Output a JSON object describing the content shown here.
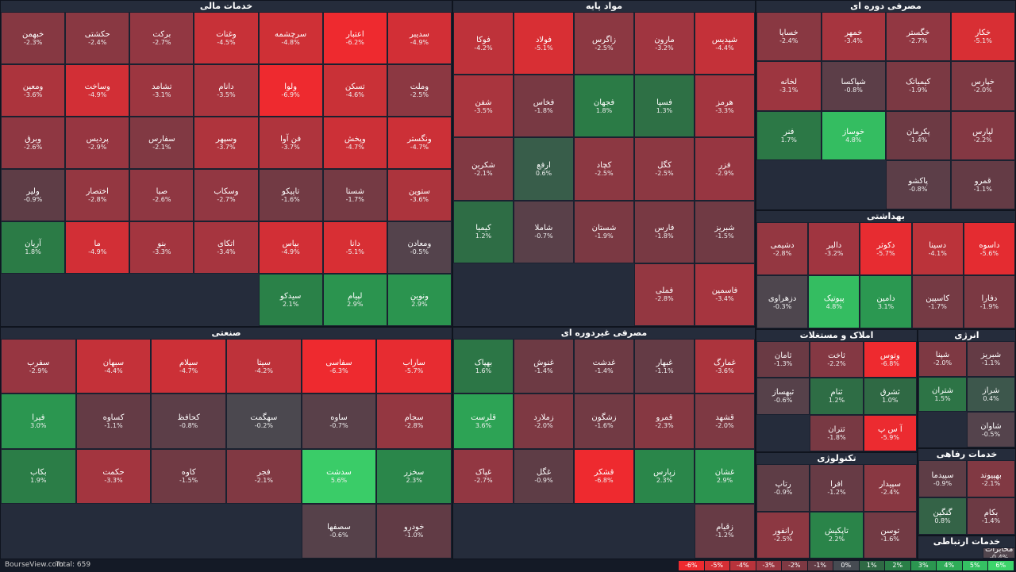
{
  "chart_data": {
    "type": "treemap",
    "sectors": [
      {
        "title": "خدمات مالی",
        "names": [
          "سدیبر",
          "اعتبار",
          "سرچشمه",
          "وغنات",
          "برکت",
          "حکشتی",
          "خبهمن",
          "وملت",
          "تسکن",
          "ولوا",
          "دانام",
          "تشامد",
          "وساخت",
          "ومعین",
          "ونگستر",
          "وپخش",
          "فن آوا",
          "وسپهر",
          "سفارس",
          "پردیس",
          "وبرق",
          "ستوین",
          "شستا",
          "تاپیکو",
          "وسکاب",
          "صبا",
          "اختصار",
          "ولیر",
          "ومعادن",
          "دانا",
          "بپاس",
          "اتکای",
          "بنو",
          "ما",
          "آریان",
          "ونوین",
          "لپیام",
          "سیدکو"
        ],
        "values": [
          -4.9,
          -6.2,
          -4.8,
          -4.5,
          -2.7,
          -2.4,
          -2.3,
          -2.5,
          -4.6,
          -6.9,
          -3.5,
          -3.1,
          -4.9,
          -3.6,
          -4.7,
          -4.7,
          -3.7,
          -3.7,
          -2.1,
          -2.9,
          -2.6,
          -3.6,
          -1.7,
          -1.6,
          -2.7,
          -2.6,
          -2.8,
          -0.9,
          -0.5,
          -5.1,
          -4.9,
          -3.4,
          -3.3,
          -4.9,
          1.8,
          2.9,
          2.9,
          2.1
        ],
        "value_labels": [
          "-4.9%",
          "-6.2%",
          "-4.8%",
          "-4.5%",
          "-2.7%",
          "-2.4%",
          "-2.3%",
          "-2.5%",
          "-4.6%",
          "-6.9%",
          "-3.5%",
          "-3.1%",
          "-4.9%",
          "-3.6%",
          "-4.7%",
          "-4.7%",
          "-3.7%",
          "-3.7%",
          "-2.1%",
          "-2.9%",
          "-2.6%",
          "-3.6%",
          "-1.7%",
          "-1.6%",
          "-2.7%",
          "-2.6%",
          "-2.8%",
          "-0.9%",
          "-0.5%",
          "-5.1%",
          "-4.9%",
          "-3.4%",
          "-3.3%",
          "-4.9%",
          "1.8%",
          "2.9%",
          "2.9%",
          "2.1%"
        ]
      },
      {
        "title": "مواد پایه",
        "names": [
          "شپدیس",
          "مارون",
          "زاگرس",
          "فولاد",
          "فوکا",
          "هرمز",
          "فسپا",
          "فجهان",
          "فخاس",
          "شفن",
          "فزر",
          "کگل",
          "کچاد",
          "ارفع",
          "شکربن",
          "شبریز",
          "فارس",
          "شستان",
          "شاملا",
          "کیمیا",
          "فاسمین",
          "فملی"
        ],
        "values": [
          -4.4,
          -3.2,
          -2.5,
          -5.1,
          -4.2,
          -3.3,
          1.3,
          1.8,
          -1.8,
          -3.5,
          -2.9,
          -2.5,
          -2.5,
          0.6,
          -2.1,
          -1.5,
          -1.8,
          -1.9,
          -0.7,
          1.2,
          -3.4,
          -2.8
        ],
        "value_labels": [
          "-4.4%",
          "-3.2%",
          "-2.5%",
          "-5.1%",
          "-4.2%",
          "-3.3%",
          "1.3%",
          "1.8%",
          "-1.8%",
          "-3.5%",
          "-2.9%",
          "-2.5%",
          "-2.5%",
          "0.6%",
          "-2.1%",
          "-1.5%",
          "-1.8%",
          "-1.9%",
          "-0.7%",
          "1.2%",
          "-3.4%",
          "-2.8%"
        ]
      },
      {
        "title": "مصرفی دوره ای",
        "names": [
          "خکار",
          "خگستر",
          "خمهر",
          "خساپا",
          "خپارس",
          "کیمیاتک",
          "شپاکسا",
          "لخانه",
          "لپارس",
          "پکرمان",
          "خوساز",
          "فنر",
          "قمرو",
          "پاکشو"
        ],
        "values": [
          -5.1,
          -2.7,
          -3.4,
          -2.4,
          -2.0,
          -1.9,
          -0.8,
          -3.1,
          -2.2,
          -1.4,
          4.8,
          1.7,
          -1.1,
          -0.8
        ],
        "value_labels": [
          "-5.1%",
          "-2.7%",
          "-3.4%",
          "-2.4%",
          "-2.0%",
          "-1.9%",
          "-0.8%",
          "-3.1%",
          "-2.2%",
          "-1.4%",
          "4.8%",
          "1.7%",
          "-1.1%",
          "-0.8%"
        ]
      },
      {
        "title": "بهداشتی",
        "names": [
          "داسوه",
          "دسینا",
          "دکوثر",
          "دالبر",
          "دشیمی",
          "دفارا",
          "کاسپین",
          "دامین",
          "پیوتیک",
          "دزهراوی"
        ],
        "values": [
          -5.6,
          -4.1,
          -5.7,
          -3.2,
          -2.8,
          -1.9,
          -1.7,
          3.1,
          4.8,
          -0.3
        ],
        "value_labels": [
          "-5.6%",
          "-4.1%",
          "-5.7%",
          "-3.2%",
          "-2.8%",
          "-1.9%",
          "-1.7%",
          "3.1%",
          "4.8%",
          "-0.3%"
        ]
      },
      {
        "title": "صنعتی",
        "names": [
          "ساراب",
          "سفاسی",
          "سیتا",
          "سیلام",
          "سبهان",
          "سفرب",
          "سجام",
          "ساوه",
          "سهگمت",
          "کحافظ",
          "کساوه",
          "فیرا",
          "سخزر",
          "سدشت",
          "فجر",
          "کاوه",
          "حکمت",
          "بکاب",
          "خودرو",
          "سصفها"
        ],
        "values": [
          -5.7,
          -6.3,
          -4.2,
          -4.7,
          -4.4,
          -2.9,
          -2.8,
          -0.7,
          -0.2,
          -0.8,
          -1.1,
          3.0,
          2.3,
          5.6,
          -2.1,
          -1.5,
          -3.3,
          1.9,
          -1.0,
          -0.6
        ],
        "value_labels": [
          "-5.7%",
          "-6.3%",
          "-4.2%",
          "-4.7%",
          "-4.4%",
          "-2.9%",
          "-2.8%",
          "-0.7%",
          "-0.2%",
          "-0.8%",
          "-1.1%",
          "3.0%",
          "2.3%",
          "5.6%",
          "-2.1%",
          "-1.5%",
          "-3.3%",
          "1.9%",
          "-1.0%",
          "-0.6%"
        ]
      },
      {
        "title": "مصرفی غیردوره ای",
        "names": [
          "غمارگ",
          "غبهار",
          "غدشت",
          "غنوش",
          "بهپاک",
          "قشهد",
          "قمرو",
          "زشگون",
          "زملارد",
          "قلرست",
          "غشان",
          "زپارس",
          "قشکر",
          "غگل",
          "غپاک",
          "زقیام"
        ],
        "values": [
          -3.6,
          -1.1,
          -1.4,
          -1.4,
          1.6,
          -2.0,
          -2.3,
          -1.6,
          -2.0,
          3.6,
          2.9,
          2.3,
          -6.8,
          -0.9,
          -2.7,
          -1.2
        ],
        "value_labels": [
          "-3.6%",
          "-1.1%",
          "-1.4%",
          "-1.4%",
          "1.6%",
          "-2.0%",
          "-2.3%",
          "-1.6%",
          "-2.0%",
          "3.6%",
          "2.9%",
          "2.3%",
          "-6.8%",
          "-0.9%",
          "-2.7%",
          "-1.2%"
        ]
      },
      {
        "title": "املاک و مستغلات",
        "names": [
          "وتوس",
          "ثاخت",
          "ثامان",
          "ثشرق",
          "ثنام",
          "ثبهساز",
          "آ س پ",
          "ثتران"
        ],
        "values": [
          -6.8,
          -2.2,
          -1.3,
          1.0,
          1.2,
          -0.6,
          -5.9,
          -1.8
        ],
        "value_labels": [
          "-6.8%",
          "-2.2%",
          "-1.3%",
          "1.0%",
          "1.2%",
          "-0.6%",
          "-5.9%",
          "-1.8%"
        ]
      },
      {
        "title": "انرژی",
        "names": [
          "شبریز",
          "شپنا",
          "شراز",
          "شتران",
          "شاوان"
        ],
        "values": [
          -1.1,
          -2.0,
          0.4,
          1.5,
          -0.5
        ],
        "value_labels": [
          "-1.1%",
          "-2.0%",
          "0.4%",
          "1.5%",
          "-0.5%"
        ]
      },
      {
        "title": "تکنولوژی",
        "names": [
          "سپیدار",
          "افرا",
          "رتاپ",
          "توسن",
          "تاپکیش",
          "رانفور"
        ],
        "values": [
          -2.4,
          -1.2,
          -0.9,
          -1.6,
          2.2,
          -2.5
        ],
        "value_labels": [
          "-2.4%",
          "-1.2%",
          "-0.9%",
          "-1.6%",
          "2.2%",
          "-2.5%"
        ]
      },
      {
        "title": "خدمات رفاهی",
        "names": [
          "بهپیوند",
          "سپیدما",
          "بکام",
          "گنگین"
        ],
        "values": [
          -2.1,
          -0.9,
          -1.4,
          0.8
        ],
        "value_labels": [
          "-2.1%",
          "-0.9%",
          "-1.4%",
          "0.8%"
        ]
      },
      {
        "title": "خدمات ارتباطی",
        "names": [
          "مخابرات"
        ],
        "values": [
          -0.4
        ],
        "value_labels": [
          "-0.4%"
        ]
      }
    ],
    "legend": [
      {
        "value": -6,
        "label": "-6%",
        "color": "#ee2a2f"
      },
      {
        "value": -5,
        "label": "-5%",
        "color": "#d52f35"
      },
      {
        "value": -4,
        "label": "-4%",
        "color": "#b8333b"
      },
      {
        "value": -3,
        "label": "-3%",
        "color": "#9a3641"
      },
      {
        "value": -2,
        "label": "-2%",
        "color": "#7e3943"
      },
      {
        "value": -1,
        "label": "-1%",
        "color": "#613b45"
      },
      {
        "value": 0,
        "label": "0%",
        "color": "#464b52"
      },
      {
        "value": 1,
        "label": "1%",
        "color": "#2f6944"
      },
      {
        "value": 2,
        "label": "2%",
        "color": "#2a7f47"
      },
      {
        "value": 3,
        "label": "3%",
        "color": "#2b9650"
      },
      {
        "value": 4,
        "label": "4%",
        "color": "#2fac58"
      },
      {
        "value": 5,
        "label": "5%",
        "color": "#35c163"
      },
      {
        "value": 6,
        "label": "6%",
        "color": "#3dd46b"
      }
    ]
  },
  "footer": {
    "site": "BourseView.com",
    "total": "Total: 659"
  }
}
